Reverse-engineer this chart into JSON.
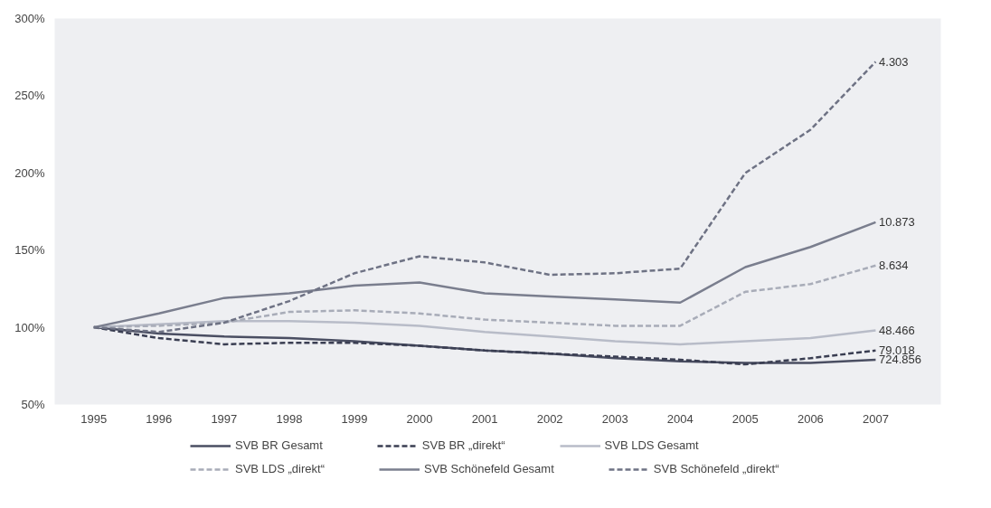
{
  "chart_data": {
    "type": "line",
    "categories": [
      "1995",
      "1996",
      "1997",
      "1998",
      "1999",
      "2000",
      "2001",
      "2002",
      "2003",
      "2004",
      "2005",
      "2006",
      "2007"
    ],
    "series": [
      {
        "name": "SVB BR Gesamt",
        "color": "#4a4e62",
        "line_style": "solid",
        "values": [
          100,
          96,
          94,
          93,
          91,
          88,
          85,
          83,
          80,
          78,
          77,
          77,
          79
        ]
      },
      {
        "name": "SVB BR „direkt“",
        "color": "#3a3e52",
        "line_style": "dashed",
        "values": [
          100,
          93,
          89,
          90,
          90,
          88,
          85,
          83,
          81,
          79,
          76,
          80,
          85
        ]
      },
      {
        "name": "SVB LDS Gesamt",
        "color": "#b8bcc8",
        "line_style": "solid",
        "values": [
          100,
          102,
          104,
          104,
          103,
          101,
          97,
          94,
          91,
          89,
          91,
          93,
          98
        ]
      },
      {
        "name": "SVB LDS „direkt“",
        "color": "#a8acb8",
        "line_style": "dashed",
        "values": [
          100,
          101,
          103,
          110,
          111,
          109,
          105,
          103,
          101,
          101,
          123,
          128,
          140
        ]
      },
      {
        "name": "SVB Schönefeld Gesamt",
        "color": "#7a7e8e",
        "line_style": "solid",
        "values": [
          100,
          109,
          119,
          122,
          127,
          129,
          122,
          120,
          118,
          116,
          139,
          152,
          168
        ]
      },
      {
        "name": "SVB Schönefeld „direkt“",
        "color": "#6e7284",
        "line_style": "dashed",
        "values": [
          100,
          97,
          103,
          117,
          135,
          146,
          142,
          134,
          135,
          138,
          200,
          228,
          272
        ]
      }
    ],
    "ylim": [
      50,
      300
    ],
    "yticks": [
      {
        "value": 50,
        "label": "50%"
      },
      {
        "value": 100,
        "label": "100%"
      },
      {
        "value": 150,
        "label": "150%"
      },
      {
        "value": 200,
        "label": "200%"
      },
      {
        "value": 250,
        "label": "250%"
      },
      {
        "value": 300,
        "label": "300%"
      }
    ],
    "annotations": [
      {
        "text": "4.303",
        "x": "2007",
        "y": 272
      },
      {
        "text": "10.873",
        "x": "2007",
        "y": 168
      },
      {
        "text": "8.634",
        "x": "2007",
        "y": 140
      },
      {
        "text": "48.466",
        "x": "2007",
        "y": 98
      },
      {
        "text": "79.018",
        "x": "2007",
        "y": 85
      },
      {
        "text": "724.856",
        "x": "2007",
        "y": 79
      }
    ],
    "legend": "bottom",
    "grid": false,
    "marker": "none"
  }
}
